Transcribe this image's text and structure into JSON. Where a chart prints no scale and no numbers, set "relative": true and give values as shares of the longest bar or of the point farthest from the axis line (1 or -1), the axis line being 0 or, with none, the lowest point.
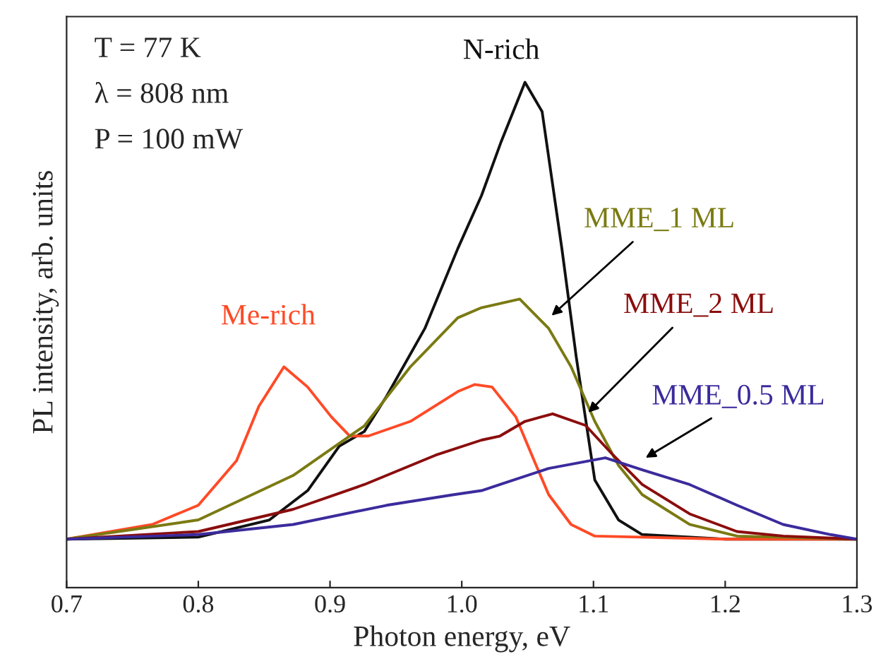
{
  "chart_data": {
    "type": "line",
    "relative": true,
    "xlabel": "Photon energy, eV",
    "ylabel": "PL intensity, arb. units",
    "xlim": [
      0.7,
      1.3
    ],
    "xticks": [
      0.7,
      0.8,
      0.9,
      {
        "value": 1.0,
        "label": "1.0"
      },
      1.1,
      1.2,
      1.3
    ],
    "tick_labels": "x",
    "grid": false,
    "marker": "none",
    "line_style": "solid",
    "annotations": [
      "T = 77 K",
      "λ = 808 nm",
      "P = 100 mW"
    ],
    "series": [
      {
        "name": "N-rich",
        "color": "#111111",
        "x": [
          0.7,
          0.8,
          0.854,
          0.883,
          0.907,
          0.926,
          0.943,
          0.972,
          0.997,
          1.015,
          1.03,
          1.048,
          1.061,
          1.076,
          1.087,
          1.101,
          1.119,
          1.137,
          1.2,
          1.3
        ],
        "values": [
          0.096,
          0.1,
          0.134,
          0.192,
          0.28,
          0.309,
          0.379,
          0.513,
          0.671,
          0.776,
          0.883,
          1.0,
          0.942,
          0.671,
          0.455,
          0.213,
          0.134,
          0.105,
          0.096,
          0.096
        ]
      },
      {
        "name": "Me-rich",
        "color": "#ff4a26",
        "x": [
          0.7,
          0.765,
          0.8,
          0.829,
          0.846,
          0.865,
          0.883,
          0.901,
          0.915,
          0.929,
          0.961,
          0.997,
          1.01,
          1.023,
          1.041,
          1.055,
          1.066,
          1.083,
          1.101,
          1.2,
          1.3
        ],
        "values": [
          0.096,
          0.125,
          0.163,
          0.251,
          0.359,
          0.437,
          0.397,
          0.338,
          0.3,
          0.3,
          0.329,
          0.388,
          0.402,
          0.397,
          0.338,
          0.251,
          0.184,
          0.125,
          0.102,
          0.096,
          0.096
        ]
      },
      {
        "name": "MME_1 ML",
        "color": "#7a7a12",
        "x": [
          0.7,
          0.8,
          0.872,
          0.926,
          0.961,
          0.997,
          1.015,
          1.044,
          1.066,
          1.083,
          1.101,
          1.119,
          1.137,
          1.173,
          1.209,
          1.3
        ],
        "values": [
          0.096,
          0.134,
          0.222,
          0.32,
          0.437,
          0.534,
          0.554,
          0.571,
          0.513,
          0.437,
          0.329,
          0.242,
          0.184,
          0.125,
          0.102,
          0.096
        ]
      },
      {
        "name": "MME_2 ML",
        "color": "#8b0d0d",
        "x": [
          0.7,
          0.8,
          0.872,
          0.926,
          0.98,
          1.015,
          1.029,
          1.048,
          1.069,
          1.094,
          1.115,
          1.137,
          1.173,
          1.209,
          1.244,
          1.3
        ],
        "values": [
          0.096,
          0.111,
          0.155,
          0.204,
          0.262,
          0.292,
          0.3,
          0.329,
          0.344,
          0.321,
          0.262,
          0.204,
          0.146,
          0.111,
          0.102,
          0.096
        ]
      },
      {
        "name": "MME_0.5 ML",
        "color": "#3b2b9c",
        "x": [
          0.7,
          0.8,
          0.872,
          0.943,
          0.994,
          1.015,
          1.029,
          1.066,
          1.109,
          1.137,
          1.173,
          1.209,
          1.244,
          1.28,
          1.3
        ],
        "values": [
          0.096,
          0.105,
          0.125,
          0.163,
          0.184,
          0.192,
          0.204,
          0.236,
          0.257,
          0.233,
          0.204,
          0.163,
          0.125,
          0.105,
          0.096
        ]
      }
    ]
  }
}
